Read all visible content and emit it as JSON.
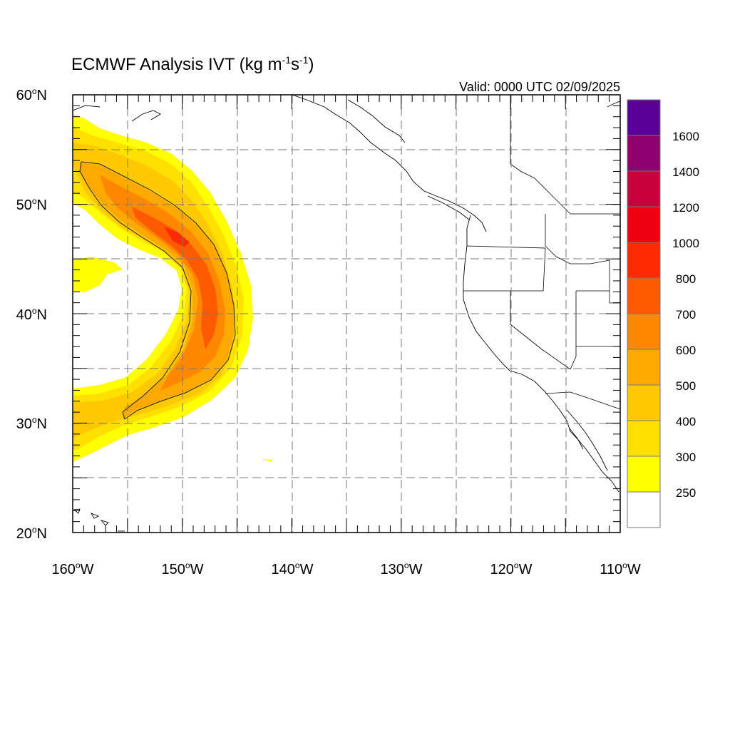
{
  "title": {
    "main": "ECMWF Analysis IVT (kg m",
    "exp1": "-1",
    "mid": "s",
    "exp2": "-1",
    "end": ")"
  },
  "valid": "Valid: 0000 UTC 02/09/2025",
  "lat_labels": [
    "60",
    "50",
    "40",
    "30",
    "20"
  ],
  "lat_suffix": "N",
  "lon_labels": [
    "160",
    "150",
    "140",
    "130",
    "120",
    "110"
  ],
  "lon_suffix": "W",
  "degree": "o",
  "extent": {
    "lon_min": -160,
    "lon_max": -110,
    "lat_min": 20,
    "lat_max": 60
  },
  "colorbar": {
    "labels": [
      "250",
      "300",
      "400",
      "500",
      "600",
      "700",
      "800",
      "1000",
      "1200",
      "1400",
      "1600"
    ],
    "colors": [
      "#ffffff",
      "#ffff00",
      "#ffe000",
      "#ffc800",
      "#ffa800",
      "#ff8800",
      "#ff5a00",
      "#ff2a00",
      "#ee0010",
      "#c8003c",
      "#8e006e",
      "#5a0096"
    ]
  },
  "field_colors": {
    "c250": "#ffff00",
    "c300": "#ffe000",
    "c400": "#ffc800",
    "c500": "#ffa800",
    "c600": "#ff8800",
    "c700": "#ff5a00",
    "c800": "#ff2a00"
  }
}
